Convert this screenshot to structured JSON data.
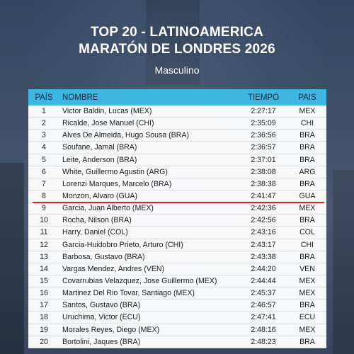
{
  "header": {
    "title_line1": "TOP 20 -  LATINOAMERICA",
    "title_line2": "MARATÓN DE LONDRES 2026",
    "subtitle": "Masculino"
  },
  "table": {
    "columns": [
      "PAÍS",
      "NOMBRE",
      "TIEMPO",
      "PAIS"
    ],
    "rows": [
      {
        "rank": "1",
        "name": "Victor Baldin, Lucas (MEX)",
        "time": "2:27:17",
        "country": "MEX"
      },
      {
        "rank": "2",
        "name": "Ricalde, Jose Manuel (CHI)",
        "time": "2:35:09",
        "country": "CHI"
      },
      {
        "rank": "3",
        "name": "Alves De Almeida, Hugo Sousa (BRA)",
        "time": "2:36:56",
        "country": "BRA"
      },
      {
        "rank": "4",
        "name": "Soufane, Jamal (BRA)",
        "time": "2:36:57",
        "country": "BRA"
      },
      {
        "rank": "5",
        "name": "Leite, Anderson (BRA)",
        "time": "2:37:01",
        "country": "BRA"
      },
      {
        "rank": "6",
        "name": "White, Guillermo Agustin (ARG)",
        "time": "2:38:08",
        "country": "ARG"
      },
      {
        "rank": "7",
        "name": "Lorenzi Marques, Marcelo (BRA)",
        "time": "2:38:38",
        "country": "BRA"
      },
      {
        "rank": "8",
        "name": "Monzon, Alvaro (GUA)",
        "time": "2:41:47",
        "country": "GUA"
      },
      {
        "rank": "9",
        "name": "Garcia, Juan Alberto (MEX)",
        "time": "2:42:36",
        "country": "MEX"
      },
      {
        "rank": "10",
        "name": "Rocha, Nilson (BRA)",
        "time": "2:42:56",
        "country": "BRA"
      },
      {
        "rank": "11",
        "name": "Harry, Daniel (COL)",
        "time": "2:43:16",
        "country": "COL"
      },
      {
        "rank": "12",
        "name": "Garcia-Huidobro Prieto, Arturo (CHI)",
        "time": "2:43:17",
        "country": "CHI"
      },
      {
        "rank": "13",
        "name": "Barbosa, Gustavo (BRA)",
        "time": "2:43:38",
        "country": "BRA"
      },
      {
        "rank": "14",
        "name": "Vargas Mendez, Andres (VEN)",
        "time": "2:44:20",
        "country": "VEN"
      },
      {
        "rank": "15",
        "name": "Covarrubias Velazquez, Jose Guillermo (MEX)",
        "time": "2:44:44",
        "country": "MEX"
      },
      {
        "rank": "16",
        "name": "Martinez Del Rio Tovar, Santiago (MEX)",
        "time": "2:45:37",
        "country": "MEX"
      },
      {
        "rank": "17",
        "name": "Santos, Gustavo (BRA)",
        "time": "2:46:57",
        "country": "BRA"
      },
      {
        "rank": "18",
        "name": "Uruchima, Victor (ECU)",
        "time": "2:47:41",
        "country": "ECU"
      },
      {
        "rank": "19",
        "name": "Morales Reyes, Diego (MEX)",
        "time": "2:48:16",
        "country": "MEX"
      },
      {
        "rank": "20",
        "name": "Bortolini, Jaques (BRA)",
        "time": "2:48:23",
        "country": "BRA"
      }
    ]
  },
  "colors": {
    "header_bg": "#3eb6e2",
    "highlight": "#e02424",
    "title_text": "#ffffff"
  }
}
